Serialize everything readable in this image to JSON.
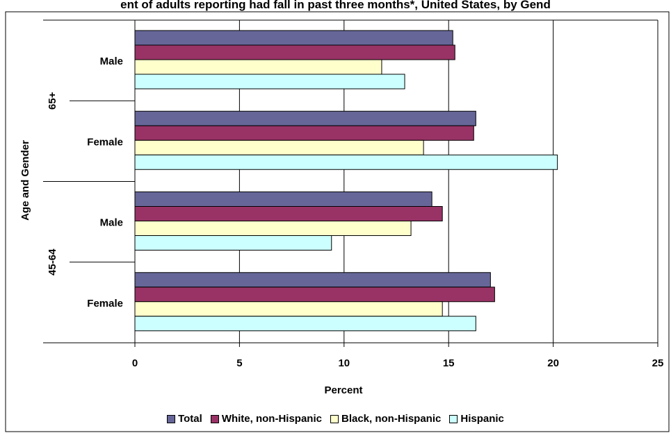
{
  "title": "ent of adults reporting had fall in past three months*, United States, by Gend",
  "chart_data": {
    "type": "bar",
    "orientation": "horizontal",
    "xlabel": "Percent",
    "ylabel": "Age and Gender",
    "xlim": [
      0,
      25
    ],
    "xticks": [
      "0",
      "5",
      "10",
      "15",
      "20",
      "25"
    ],
    "grid": "vertical",
    "legend_position": "bottom",
    "age_groups": [
      "65+",
      "45-64"
    ],
    "categories": [
      {
        "label": "Male",
        "group": "65+"
      },
      {
        "label": "Female",
        "group": "65+"
      },
      {
        "label": "Male",
        "group": "45-64"
      },
      {
        "label": "Female",
        "group": "45-64"
      }
    ],
    "series": [
      {
        "name": "Total",
        "color": "#666699",
        "values": [
          15.2,
          16.3,
          14.2,
          17.0
        ]
      },
      {
        "name": "White, non-Hispanic",
        "color": "#993366",
        "values": [
          15.3,
          16.2,
          14.7,
          17.2
        ]
      },
      {
        "name": "Black, non-Hispanic",
        "color": "#FFFFCC",
        "values": [
          11.8,
          13.8,
          13.2,
          14.7
        ]
      },
      {
        "name": "Hispanic",
        "color": "#CCFFFF",
        "values": [
          12.9,
          20.2,
          9.4,
          16.3
        ]
      }
    ]
  }
}
